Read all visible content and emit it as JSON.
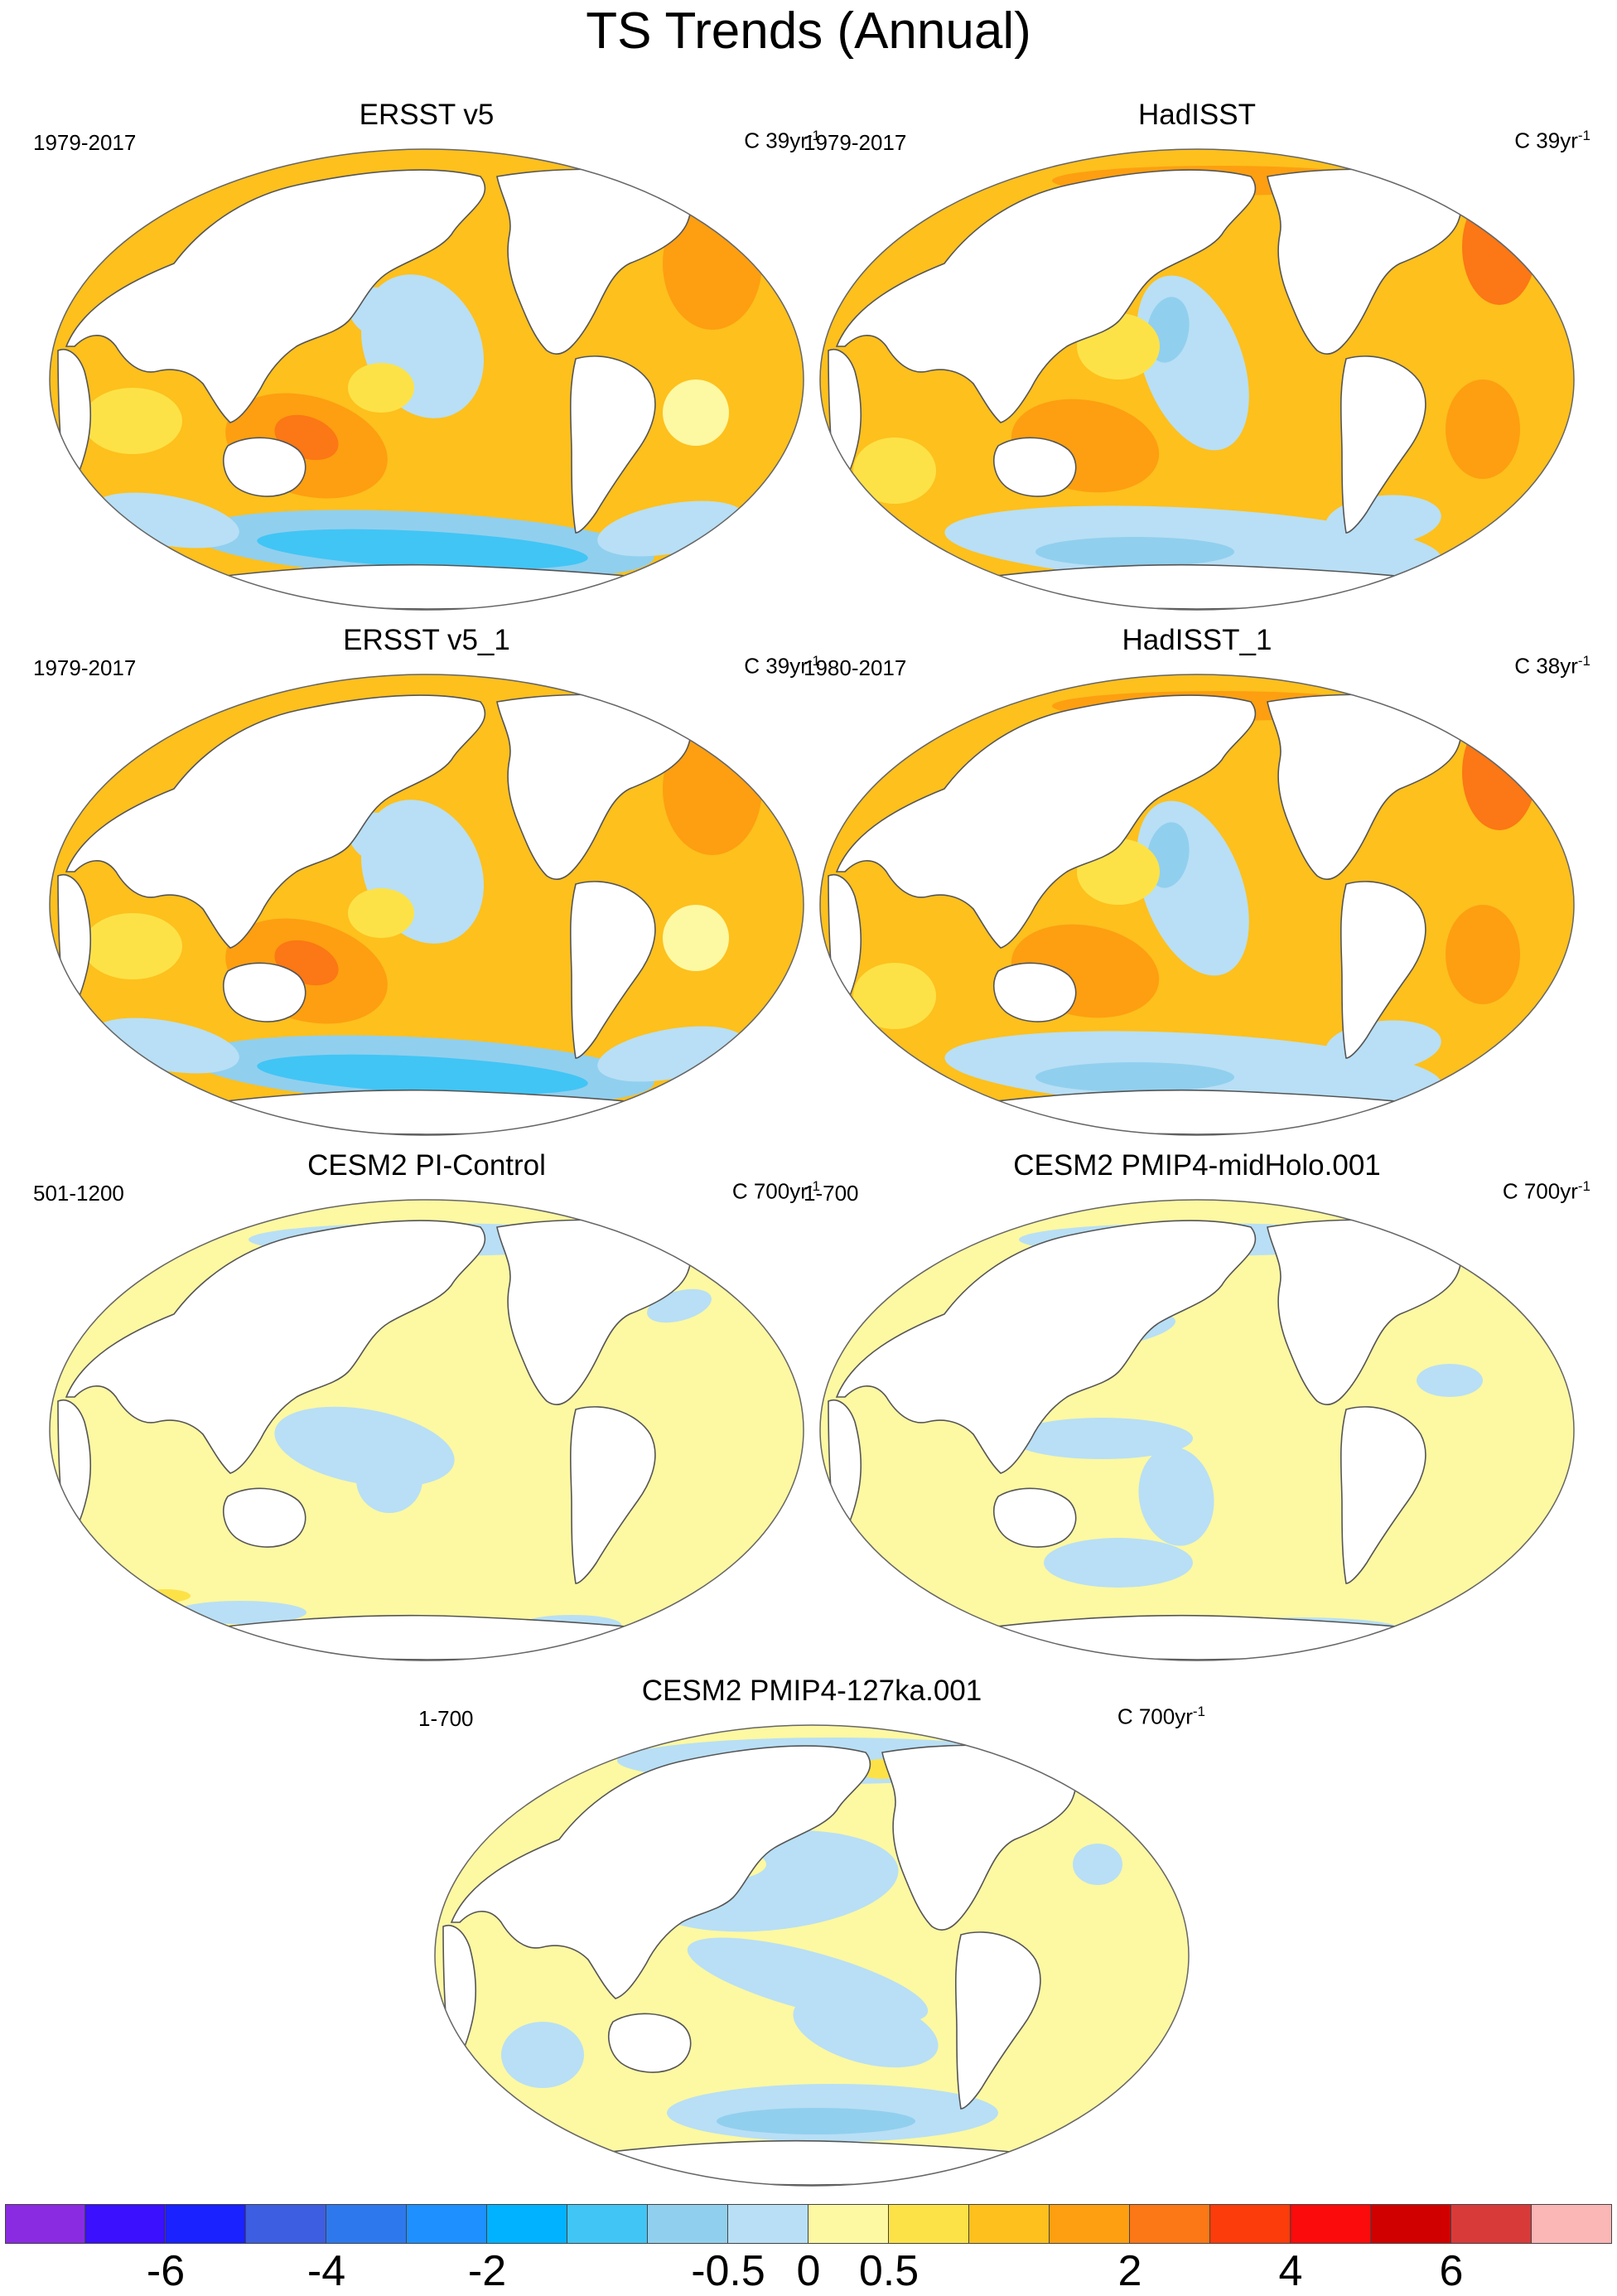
{
  "title": "TS Trends (Annual)",
  "panels": [
    {
      "title": "ERSST v5",
      "left_label": "1979-2017",
      "units": "C 39yr",
      "units_exp": "-1",
      "pattern": "obs_smooth"
    },
    {
      "title": "HadISST",
      "left_label": "1979-2017",
      "units": "C 39yr",
      "units_exp": "-1",
      "pattern": "obs_noisy"
    },
    {
      "title": "ERSST v5_1",
      "left_label": "1979-2017",
      "units": "C 39yr",
      "units_exp": "-1",
      "pattern": "obs_smooth"
    },
    {
      "title": "HadISST_1",
      "left_label": "1980-2017",
      "units": "C 38yr",
      "units_exp": "-1",
      "pattern": "obs_noisy"
    },
    {
      "title": "CESM2 PI-Control",
      "left_label": "501-1200",
      "units": "C 700yr",
      "units_exp": "-1",
      "pattern": "model_weak"
    },
    {
      "title": "CESM2 PMIP4-midHolo.001",
      "left_label": "1-700",
      "units": "C 700yr",
      "units_exp": "-1",
      "pattern": "model_weak2"
    },
    {
      "title": "CESM2 PMIP4-127ka.001",
      "left_label": "1-700",
      "units": "C 700yr",
      "units_exp": "-1",
      "pattern": "model_127ka"
    }
  ],
  "colorbar": {
    "colors": [
      "#8a2be2",
      "#3a10ff",
      "#1a22ff",
      "#3d5ee0",
      "#2e78ee",
      "#1e90ff",
      "#00b2ff",
      "#41c5f5",
      "#91cfee",
      "#b8dff5",
      "#fdf8a2",
      "#fde247",
      "#fdc01d",
      "#fd9f10",
      "#fc7715",
      "#fc3c0b",
      "#fb0b0b",
      "#d00000",
      "#d83a3a",
      "#fbb6b6"
    ],
    "labels": [
      "-6",
      "-4",
      "-2",
      "-0.5",
      "0",
      "0.5",
      "2",
      "4",
      "6"
    ],
    "label_boundaries": [
      2,
      4,
      6,
      9,
      10,
      11,
      14,
      16,
      18
    ]
  },
  "palette": {
    "land": "#ffffff",
    "coast": "#555555"
  }
}
